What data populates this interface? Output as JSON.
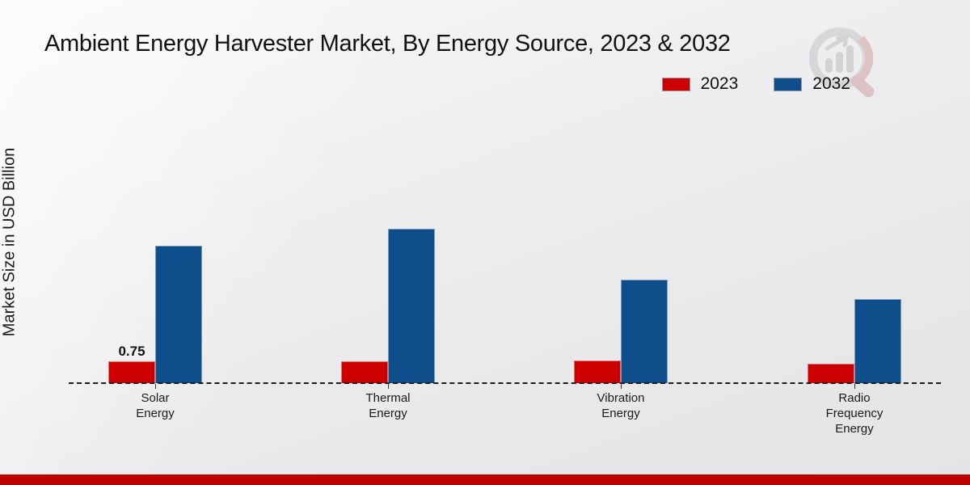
{
  "title": "Ambient Energy Harvester Market, By Energy Source, 2023 & 2032",
  "y_axis_label": "Market Size in USD Billion",
  "legend": [
    {
      "label": "2023",
      "color": "#cc0000"
    },
    {
      "label": "2032",
      "color": "#0d4e8b"
    }
  ],
  "colors": {
    "accent_red": "#cc0000",
    "accent_blue": "#0d4e8b",
    "footer_bar": "#bf0000",
    "baseline": "#1c1c1c"
  },
  "watermark_icon": "magnifier-bar-chart-logo",
  "chart_data": {
    "type": "bar",
    "categories": [
      "Solar Energy",
      "Thermal Energy",
      "Vibration Energy",
      "Radio Frequency Energy"
    ],
    "category_display": [
      "Solar\nEnergy",
      "Thermal\nEnergy",
      "Vibration\nEnergy",
      "Radio\nFrequency\nEnergy"
    ],
    "series": [
      {
        "name": "2023",
        "color": "#cc0000",
        "values": [
          0.75,
          0.73,
          0.77,
          0.66
        ]
      },
      {
        "name": "2032",
        "color": "#0d4e8b",
        "values": [
          4.64,
          5.22,
          3.5,
          2.84
        ]
      }
    ],
    "data_labels": [
      {
        "series": "2023",
        "category_index": 0,
        "text": "0.75"
      }
    ],
    "title": "Ambient Energy Harvester Market, By Energy Source, 2023 & 2032",
    "xlabel": "",
    "ylabel": "Market Size in USD Billion",
    "ylim": [
      0,
      9
    ],
    "grid": false,
    "y_axis_ticks_visible": false,
    "baseline_style": "dashed",
    "legend_position": "top-right"
  }
}
